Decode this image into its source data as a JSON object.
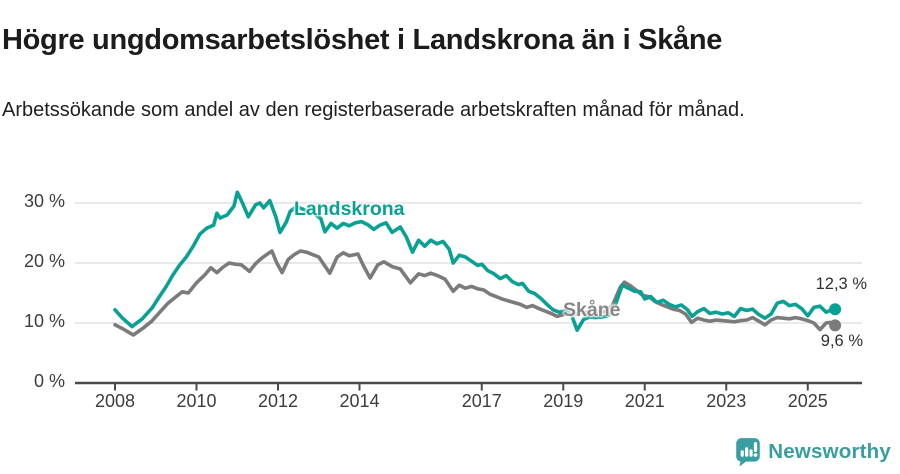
{
  "colors": {
    "landskrona": "#0aa094",
    "skane": "#7b7b7b",
    "grid": "#dcdcdc",
    "axis": "#4a4a4a",
    "tick_text": "#3d3d3d",
    "logo_teal": "#3a9da0"
  },
  "chart_data": {
    "type": "line",
    "title": "Högre ungdomsarbetslöshet i Landskrona än i Skåne",
    "subtitle": "Arbetssökande som andel av den registerbaserade arbetskraften månad för månad.",
    "xlabel": "",
    "ylabel": "",
    "x_unit": "decimal_year",
    "xlim": [
      2007,
      2026.3
    ],
    "ylim": [
      0,
      33
    ],
    "grid": "horizontal",
    "legend_position": "inline-labels",
    "yticks": [
      {
        "v": 0,
        "label": "0 %"
      },
      {
        "v": 10,
        "label": "10 %"
      },
      {
        "v": 20,
        "label": "20 %"
      },
      {
        "v": 30,
        "label": "30 %"
      }
    ],
    "xticks": [
      {
        "v": 2008,
        "label": "2008"
      },
      {
        "v": 2010,
        "label": "2010"
      },
      {
        "v": 2012,
        "label": "2012"
      },
      {
        "v": 2014,
        "label": "2014"
      },
      {
        "v": 2017,
        "label": "2017"
      },
      {
        "v": 2019,
        "label": "2019"
      },
      {
        "v": 2021,
        "label": "2021"
      },
      {
        "v": 2023,
        "label": "2023"
      },
      {
        "v": 2025,
        "label": "2025"
      }
    ],
    "series": [
      {
        "name": "Landskrona",
        "color": "#0aa094",
        "end_label": "12,3 %",
        "end_value": 12.3,
        "points": [
          [
            2008.0,
            12.2
          ],
          [
            2008.17,
            10.9
          ],
          [
            2008.42,
            9.4
          ],
          [
            2008.67,
            10.7
          ],
          [
            2008.92,
            12.6
          ],
          [
            2009.1,
            14.5
          ],
          [
            2009.25,
            16.0
          ],
          [
            2009.42,
            18.0
          ],
          [
            2009.58,
            19.6
          ],
          [
            2009.75,
            21.0
          ],
          [
            2009.92,
            22.8
          ],
          [
            2010.08,
            24.8
          ],
          [
            2010.25,
            25.8
          ],
          [
            2010.42,
            26.3
          ],
          [
            2010.5,
            28.3
          ],
          [
            2010.58,
            27.5
          ],
          [
            2010.75,
            28.0
          ],
          [
            2010.92,
            29.5
          ],
          [
            2011.0,
            31.8
          ],
          [
            2011.13,
            30.0
          ],
          [
            2011.27,
            27.7
          ],
          [
            2011.45,
            29.7
          ],
          [
            2011.55,
            30.0
          ],
          [
            2011.65,
            29.2
          ],
          [
            2011.8,
            30.4
          ],
          [
            2011.95,
            27.6
          ],
          [
            2012.05,
            25.1
          ],
          [
            2012.2,
            26.8
          ],
          [
            2012.3,
            28.6
          ],
          [
            2012.45,
            29.4
          ],
          [
            2012.6,
            29.0
          ],
          [
            2012.75,
            28.5
          ],
          [
            2012.9,
            28.2
          ],
          [
            2013.05,
            27.4
          ],
          [
            2013.15,
            25.2
          ],
          [
            2013.3,
            26.6
          ],
          [
            2013.45,
            25.8
          ],
          [
            2013.6,
            26.6
          ],
          [
            2013.75,
            26.2
          ],
          [
            2013.9,
            26.7
          ],
          [
            2014.05,
            26.9
          ],
          [
            2014.2,
            26.4
          ],
          [
            2014.35,
            25.6
          ],
          [
            2014.5,
            26.3
          ],
          [
            2014.65,
            26.7
          ],
          [
            2014.8,
            25.1
          ],
          [
            2015.0,
            26.0
          ],
          [
            2015.15,
            24.3
          ],
          [
            2015.3,
            21.8
          ],
          [
            2015.45,
            23.8
          ],
          [
            2015.6,
            22.8
          ],
          [
            2015.75,
            23.8
          ],
          [
            2015.9,
            23.2
          ],
          [
            2016.05,
            23.6
          ],
          [
            2016.2,
            22.3
          ],
          [
            2016.3,
            20.0
          ],
          [
            2016.45,
            21.3
          ],
          [
            2016.6,
            21.0
          ],
          [
            2016.75,
            20.3
          ],
          [
            2016.9,
            19.6
          ],
          [
            2017.0,
            19.8
          ],
          [
            2017.15,
            18.7
          ],
          [
            2017.3,
            18.2
          ],
          [
            2017.45,
            17.4
          ],
          [
            2017.6,
            17.9
          ],
          [
            2017.75,
            16.9
          ],
          [
            2017.9,
            16.4
          ],
          [
            2018.0,
            16.6
          ],
          [
            2018.15,
            15.3
          ],
          [
            2018.3,
            14.9
          ],
          [
            2018.45,
            14.1
          ],
          [
            2018.6,
            13.1
          ],
          [
            2018.75,
            12.2
          ],
          [
            2018.9,
            11.8
          ],
          [
            2019.05,
            12.0
          ],
          [
            2019.2,
            11.4
          ],
          [
            2019.34,
            8.8
          ],
          [
            2019.5,
            10.6
          ],
          [
            2019.65,
            11.0
          ],
          [
            2019.8,
            10.9
          ],
          [
            2019.95,
            11.0
          ],
          [
            2020.1,
            11.2
          ],
          [
            2020.25,
            12.5
          ],
          [
            2020.45,
            16.3
          ],
          [
            2020.6,
            15.8
          ],
          [
            2020.75,
            15.3
          ],
          [
            2020.9,
            15.2
          ],
          [
            2021.0,
            14.0
          ],
          [
            2021.15,
            14.4
          ],
          [
            2021.3,
            13.4
          ],
          [
            2021.45,
            13.8
          ],
          [
            2021.6,
            13.1
          ],
          [
            2021.75,
            12.7
          ],
          [
            2021.9,
            13.0
          ],
          [
            2022.05,
            12.2
          ],
          [
            2022.16,
            11.1
          ],
          [
            2022.3,
            11.9
          ],
          [
            2022.45,
            12.4
          ],
          [
            2022.6,
            11.6
          ],
          [
            2022.75,
            11.8
          ],
          [
            2022.9,
            11.5
          ],
          [
            2023.05,
            11.7
          ],
          [
            2023.2,
            11.1
          ],
          [
            2023.35,
            12.4
          ],
          [
            2023.5,
            12.1
          ],
          [
            2023.65,
            12.3
          ],
          [
            2023.8,
            11.4
          ],
          [
            2023.95,
            10.8
          ],
          [
            2024.1,
            11.5
          ],
          [
            2024.25,
            13.3
          ],
          [
            2024.4,
            13.6
          ],
          [
            2024.55,
            12.9
          ],
          [
            2024.7,
            13.1
          ],
          [
            2024.85,
            12.4
          ],
          [
            2025.0,
            11.2
          ],
          [
            2025.15,
            12.6
          ],
          [
            2025.3,
            12.8
          ],
          [
            2025.45,
            11.8
          ],
          [
            2025.55,
            12.1
          ],
          [
            2025.67,
            12.3
          ]
        ]
      },
      {
        "name": "Skåne",
        "color": "#7b7b7b",
        "end_label": "9,6 %",
        "end_value": 9.6,
        "points": [
          [
            2008.0,
            9.7
          ],
          [
            2008.2,
            9.0
          ],
          [
            2008.45,
            8.0
          ],
          [
            2008.7,
            9.2
          ],
          [
            2008.9,
            10.3
          ],
          [
            2009.1,
            11.8
          ],
          [
            2009.3,
            13.3
          ],
          [
            2009.5,
            14.4
          ],
          [
            2009.65,
            15.2
          ],
          [
            2009.8,
            15.0
          ],
          [
            2010.0,
            16.7
          ],
          [
            2010.2,
            18.0
          ],
          [
            2010.35,
            19.2
          ],
          [
            2010.5,
            18.4
          ],
          [
            2010.65,
            19.3
          ],
          [
            2010.8,
            20.0
          ],
          [
            2010.95,
            19.8
          ],
          [
            2011.1,
            19.7
          ],
          [
            2011.3,
            18.6
          ],
          [
            2011.45,
            19.9
          ],
          [
            2011.6,
            20.8
          ],
          [
            2011.7,
            21.3
          ],
          [
            2011.85,
            22.0
          ],
          [
            2011.97,
            20.0
          ],
          [
            2012.1,
            18.4
          ],
          [
            2012.25,
            20.6
          ],
          [
            2012.4,
            21.4
          ],
          [
            2012.55,
            22.0
          ],
          [
            2012.7,
            21.8
          ],
          [
            2012.85,
            21.4
          ],
          [
            2013.0,
            21.0
          ],
          [
            2013.15,
            19.5
          ],
          [
            2013.27,
            18.3
          ],
          [
            2013.45,
            21.0
          ],
          [
            2013.6,
            21.7
          ],
          [
            2013.75,
            21.2
          ],
          [
            2013.96,
            21.5
          ],
          [
            2014.1,
            19.5
          ],
          [
            2014.26,
            17.5
          ],
          [
            2014.45,
            19.7
          ],
          [
            2014.6,
            20.2
          ],
          [
            2014.8,
            19.4
          ],
          [
            2015.0,
            19.0
          ],
          [
            2015.25,
            16.7
          ],
          [
            2015.45,
            18.2
          ],
          [
            2015.6,
            17.9
          ],
          [
            2015.75,
            18.3
          ],
          [
            2015.95,
            17.8
          ],
          [
            2016.1,
            17.3
          ],
          [
            2016.3,
            15.3
          ],
          [
            2016.45,
            16.3
          ],
          [
            2016.6,
            15.8
          ],
          [
            2016.75,
            16.1
          ],
          [
            2016.9,
            15.7
          ],
          [
            2017.05,
            15.5
          ],
          [
            2017.2,
            14.8
          ],
          [
            2017.35,
            14.4
          ],
          [
            2017.5,
            14.0
          ],
          [
            2017.65,
            13.7
          ],
          [
            2017.8,
            13.4
          ],
          [
            2017.95,
            13.1
          ],
          [
            2018.1,
            12.6
          ],
          [
            2018.25,
            12.9
          ],
          [
            2018.4,
            12.4
          ],
          [
            2018.55,
            12.0
          ],
          [
            2018.7,
            11.6
          ],
          [
            2018.85,
            11.1
          ],
          [
            2019.0,
            11.4
          ],
          [
            2019.15,
            11.8
          ],
          [
            2019.3,
            11.5
          ],
          [
            2019.45,
            11.8
          ],
          [
            2019.6,
            11.7
          ],
          [
            2019.75,
            11.9
          ],
          [
            2019.9,
            11.8
          ],
          [
            2020.05,
            12.0
          ],
          [
            2020.2,
            12.8
          ],
          [
            2020.4,
            16.0
          ],
          [
            2020.5,
            16.8
          ],
          [
            2020.65,
            16.2
          ],
          [
            2020.8,
            15.4
          ],
          [
            2020.95,
            14.6
          ],
          [
            2021.1,
            14.4
          ],
          [
            2021.25,
            13.6
          ],
          [
            2021.4,
            13.1
          ],
          [
            2021.55,
            12.7
          ],
          [
            2021.7,
            12.3
          ],
          [
            2021.85,
            12.1
          ],
          [
            2022.0,
            11.5
          ],
          [
            2022.15,
            10.1
          ],
          [
            2022.3,
            10.8
          ],
          [
            2022.45,
            10.5
          ],
          [
            2022.6,
            10.3
          ],
          [
            2022.75,
            10.5
          ],
          [
            2022.9,
            10.4
          ],
          [
            2023.05,
            10.3
          ],
          [
            2023.2,
            10.2
          ],
          [
            2023.35,
            10.4
          ],
          [
            2023.5,
            10.5
          ],
          [
            2023.65,
            10.9
          ],
          [
            2023.8,
            10.3
          ],
          [
            2023.95,
            9.7
          ],
          [
            2024.1,
            10.5
          ],
          [
            2024.25,
            10.9
          ],
          [
            2024.4,
            10.8
          ],
          [
            2024.55,
            10.7
          ],
          [
            2024.7,
            10.9
          ],
          [
            2024.85,
            10.7
          ],
          [
            2025.0,
            10.4
          ],
          [
            2025.15,
            10.0
          ],
          [
            2025.3,
            8.9
          ],
          [
            2025.45,
            10.0
          ],
          [
            2025.55,
            10.1
          ],
          [
            2025.67,
            9.6
          ]
        ]
      }
    ]
  },
  "footer": {
    "brand": "Newsworthy"
  }
}
